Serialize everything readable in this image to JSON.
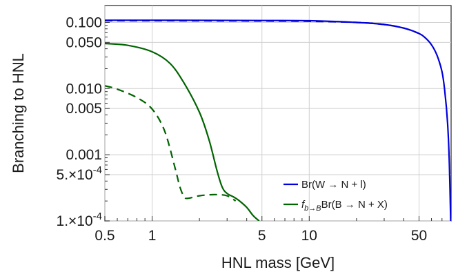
{
  "chart_data": {
    "type": "line",
    "xlabel": "HNL mass [GeV]",
    "ylabel": "Branching to HNL",
    "xscale": "log",
    "yscale": "log",
    "xlim": [
      0.5,
      80
    ],
    "ylim": [
      0.0001,
      0.18
    ],
    "grid": true,
    "legend_position": "bottom-right",
    "x_ticks": [
      0.5,
      1,
      5,
      10,
      50
    ],
    "x_tick_labels": [
      "0.5",
      "1",
      "5",
      "10",
      "50"
    ],
    "y_ticks": [
      0.0001,
      0.0005,
      0.001,
      0.005,
      0.01,
      0.05,
      0.1
    ],
    "y_tick_labels": [
      "1.×10⁻⁴",
      "5.×10⁻⁴",
      "0.001",
      "0.005",
      "0.010",
      "0.050",
      "0.100"
    ],
    "series": [
      {
        "name": "Br(W → N + l)",
        "color": "#0000dd",
        "style": "solid",
        "x": [
          0.5,
          1,
          5,
          10,
          20,
          30,
          40,
          50,
          55,
          60,
          65,
          70,
          73,
          76,
          78,
          79.5
        ],
        "y": [
          0.108,
          0.108,
          0.107,
          0.106,
          0.1,
          0.093,
          0.082,
          0.068,
          0.058,
          0.046,
          0.032,
          0.018,
          0.009,
          0.003,
          0.0007,
          0.0001
        ]
      },
      {
        "name": "",
        "color": "#0000dd",
        "style": "dashed",
        "x": [
          0.5,
          1,
          5,
          10,
          20,
          30,
          40,
          50
        ],
        "y": [
          0.106,
          0.106,
          0.105,
          0.104,
          0.1,
          0.093,
          0.082,
          0.068
        ]
      },
      {
        "name": "f_{b→B}Br(B → N + X)",
        "color": "#006400",
        "style": "solid",
        "x": [
          0.5,
          0.7,
          1.0,
          1.3,
          1.6,
          2.0,
          2.3,
          2.6,
          2.8,
          3.0,
          3.3,
          3.6,
          4.0,
          4.4,
          4.8
        ],
        "y": [
          0.048,
          0.045,
          0.036,
          0.024,
          0.012,
          0.0044,
          0.0017,
          0.00055,
          0.00032,
          0.00026,
          0.00023,
          0.0002,
          0.00016,
          0.00012,
          0.0001
        ]
      },
      {
        "name": "",
        "color": "#006400",
        "style": "dashed",
        "x": [
          0.5,
          0.6,
          0.8,
          1.0,
          1.2,
          1.4,
          1.5,
          1.6,
          1.7,
          2.0,
          2.5,
          3.0,
          3.4
        ],
        "y": [
          0.011,
          0.0098,
          0.0073,
          0.0049,
          0.0023,
          0.00063,
          0.00033,
          0.00023,
          0.00022,
          0.00024,
          0.00025,
          0.00024,
          0.0002
        ]
      }
    ]
  }
}
